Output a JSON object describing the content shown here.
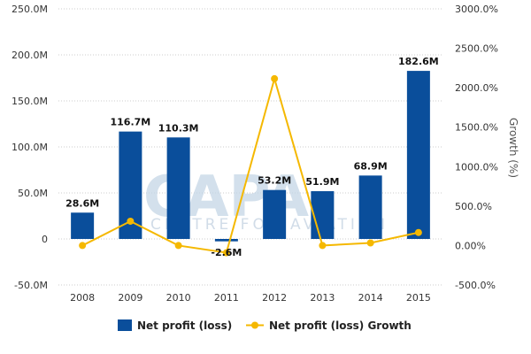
{
  "chart_data": {
    "type": "bar",
    "categories": [
      "2008",
      "2009",
      "2010",
      "2011",
      "2012",
      "2013",
      "2014",
      "2015"
    ],
    "series": [
      {
        "name": "Net profit (loss)",
        "kind": "bar",
        "axis": "left",
        "color": "#0a4e9b",
        "values": [
          28.6,
          116.7,
          110.3,
          -2.6,
          53.2,
          51.9,
          68.9,
          182.6
        ],
        "labels": [
          "28.6M",
          "116.7M",
          "110.3M",
          "-2.6M",
          "53.2M",
          "51.9M",
          "68.9M",
          "182.6M"
        ]
      },
      {
        "name": "Net profit (loss) Growth",
        "kind": "line",
        "axis": "right",
        "color": "#f5b800",
        "values": [
          0,
          308,
          0,
          -91,
          2115,
          0,
          33,
          165
        ]
      }
    ],
    "y_left": {
      "min": -50,
      "max": 250,
      "ticks": [
        -50,
        0,
        50,
        100,
        150,
        200,
        250
      ],
      "tick_labels": [
        "-50.0M",
        "0",
        "50.0M",
        "100.0M",
        "150.0M",
        "200.0M",
        "250.0M"
      ]
    },
    "y_right": {
      "min": -500,
      "max": 3000,
      "title": "Growth (%)",
      "ticks": [
        -500,
        0,
        500,
        1000,
        1500,
        2000,
        2500,
        3000
      ],
      "tick_labels": [
        "-500.0%",
        "0.00%",
        "500.0%",
        "1000.0%",
        "1500.0%",
        "2000.0%",
        "2500.0%",
        "3000.0%"
      ]
    },
    "grid": true,
    "legend": "bottom-center",
    "watermark": {
      "main": "CAPA",
      "sub": "CENTRE FOR AVIATION"
    }
  }
}
